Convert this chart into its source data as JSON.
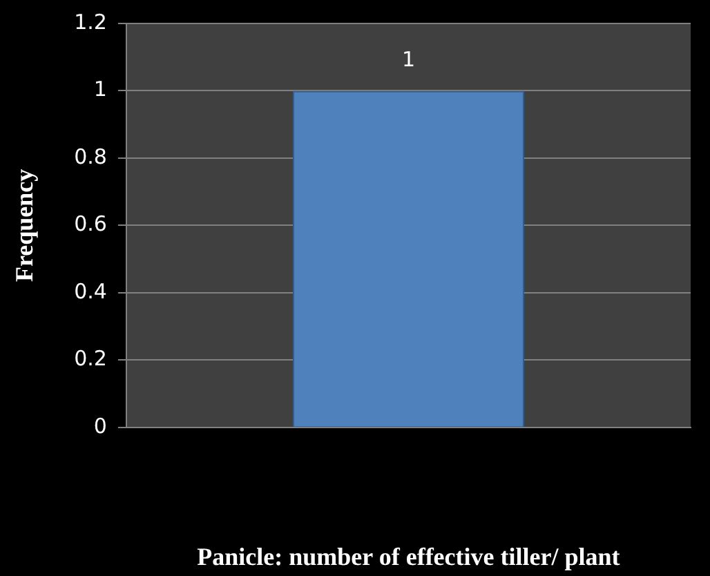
{
  "chart_data": {
    "type": "bar",
    "xlabel": "Panicle: number of effective tiller/ plant",
    "ylabel": "Frequency",
    "categories": [
      null
    ],
    "values": [
      1
    ],
    "color": "#4f81bd",
    "ylim": [
      0,
      1.2
    ],
    "yticks": [
      0,
      0.2,
      0.4,
      0.6,
      0.8,
      1,
      1.2
    ],
    "grid": "y",
    "legend": false,
    "data_labels": true
  }
}
